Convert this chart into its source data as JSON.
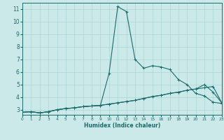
{
  "xlabel": "Humidex (Indice chaleur)",
  "bg_color": "#cce9e9",
  "grid_color": "#aad4d4",
  "line_color": "#1a6b6b",
  "xlim": [
    0,
    23
  ],
  "ylim": [
    2.6,
    11.5
  ],
  "xticks": [
    0,
    1,
    2,
    3,
    4,
    5,
    6,
    7,
    8,
    9,
    10,
    11,
    12,
    13,
    14,
    15,
    16,
    17,
    18,
    19,
    20,
    21,
    22,
    23
  ],
  "yticks": [
    3,
    4,
    5,
    6,
    7,
    8,
    9,
    10,
    11
  ],
  "curve1": {
    "x": [
      0,
      1,
      2,
      3,
      4,
      5,
      6,
      7,
      8,
      9,
      10,
      11,
      12,
      13,
      14,
      15,
      16,
      17,
      18,
      19,
      20,
      21,
      22,
      23
    ],
    "y": [
      2.8,
      2.85,
      2.75,
      2.85,
      3.0,
      3.1,
      3.15,
      3.25,
      3.3,
      3.35,
      5.9,
      11.2,
      10.8,
      7.0,
      6.3,
      6.5,
      6.4,
      6.2,
      5.4,
      5.0,
      4.3,
      4.1,
      3.6,
      3.5
    ]
  },
  "curve2": {
    "x": [
      0,
      1,
      2,
      3,
      4,
      5,
      6,
      7,
      8,
      9,
      10,
      11,
      12,
      13,
      14,
      15,
      16,
      17,
      18,
      19,
      20,
      21,
      22,
      23
    ],
    "y": [
      2.8,
      2.85,
      2.75,
      2.85,
      3.0,
      3.1,
      3.15,
      3.25,
      3.3,
      3.35,
      3.45,
      3.55,
      3.65,
      3.75,
      3.9,
      4.05,
      4.15,
      4.3,
      4.4,
      4.55,
      4.65,
      5.0,
      4.4,
      3.55
    ]
  },
  "curve3": {
    "x": [
      0,
      1,
      2,
      3,
      4,
      5,
      6,
      7,
      8,
      9,
      10,
      11,
      12,
      13,
      14,
      15,
      16,
      17,
      18,
      19,
      20,
      21,
      22,
      23
    ],
    "y": [
      2.8,
      2.85,
      2.75,
      2.85,
      3.0,
      3.1,
      3.15,
      3.25,
      3.3,
      3.35,
      3.45,
      3.55,
      3.65,
      3.75,
      3.9,
      4.05,
      4.15,
      4.3,
      4.4,
      4.55,
      4.65,
      4.75,
      4.85,
      3.55
    ]
  },
  "xlabel_fontsize": 5.5,
  "tick_fontsize_x": 4.2,
  "tick_fontsize_y": 5.5,
  "linewidth": 0.8,
  "markersize": 2.5,
  "markeredgewidth": 0.7
}
